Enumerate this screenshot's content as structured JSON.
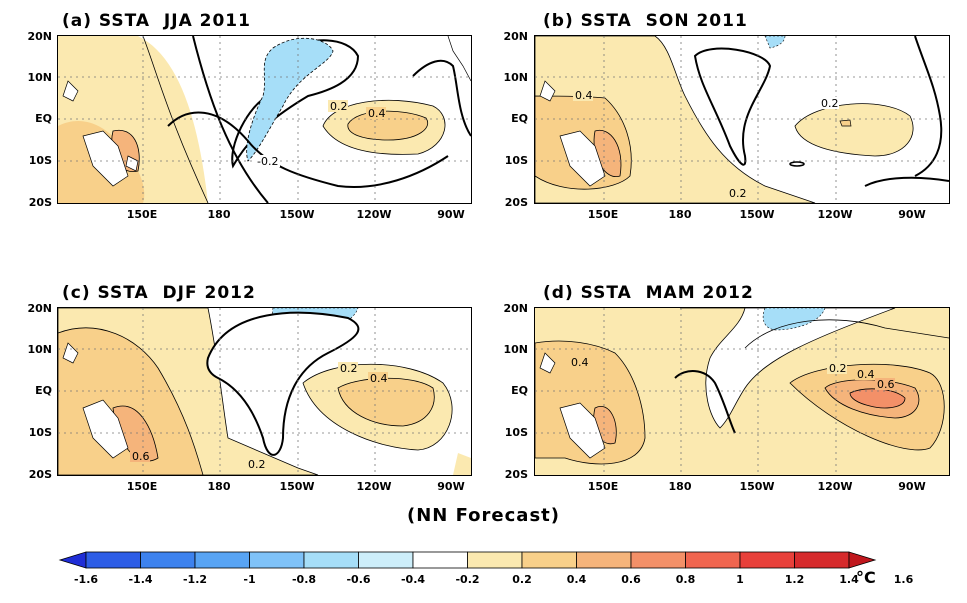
{
  "maps": [
    {
      "title": "(a) SSTA  JJA 2011",
      "contour_labels": [
        "0.2",
        "0.4",
        "-0.2"
      ]
    },
    {
      "title": "(b) SSTA  SON 2011",
      "contour_labels": [
        "0.4",
        "0.2",
        "0.2"
      ]
    },
    {
      "title": "(c) SSTA  DJF 2012",
      "contour_labels": [
        "0.2",
        "0.4",
        "0.6",
        "0.2"
      ]
    },
    {
      "title": "(d) SSTA  MAM 2012",
      "contour_labels": [
        "0.4",
        "0.2",
        "0.4",
        "0.6"
      ]
    }
  ],
  "lat_labels": [
    "20N",
    "10N",
    "EQ",
    "10S",
    "20S"
  ],
  "lon_labels": [
    "150E",
    "180",
    "150W",
    "120W",
    "90W"
  ],
  "footer_title": "(NN Forecast)",
  "colorbar": {
    "labels": [
      "-1.6",
      "-1.4",
      "-1.2",
      "-1",
      "-0.8",
      "-0.6",
      "-0.4",
      "-0.2",
      "0.2",
      "0.4",
      "0.6",
      "0.8",
      "1",
      "1.2",
      "1.4",
      "1.6"
    ],
    "colors": [
      "#1f2dd6",
      "#2d5de6",
      "#3d82ee",
      "#58a4f4",
      "#7fc2f8",
      "#a6def8",
      "#cdeefa",
      "#ffffff",
      "#fbe9b0",
      "#f8d08a",
      "#f5b47b",
      "#f39068",
      "#f0654f",
      "#e8403a",
      "#d62a2c",
      "#c0171d"
    ],
    "unit": "°C"
  }
}
